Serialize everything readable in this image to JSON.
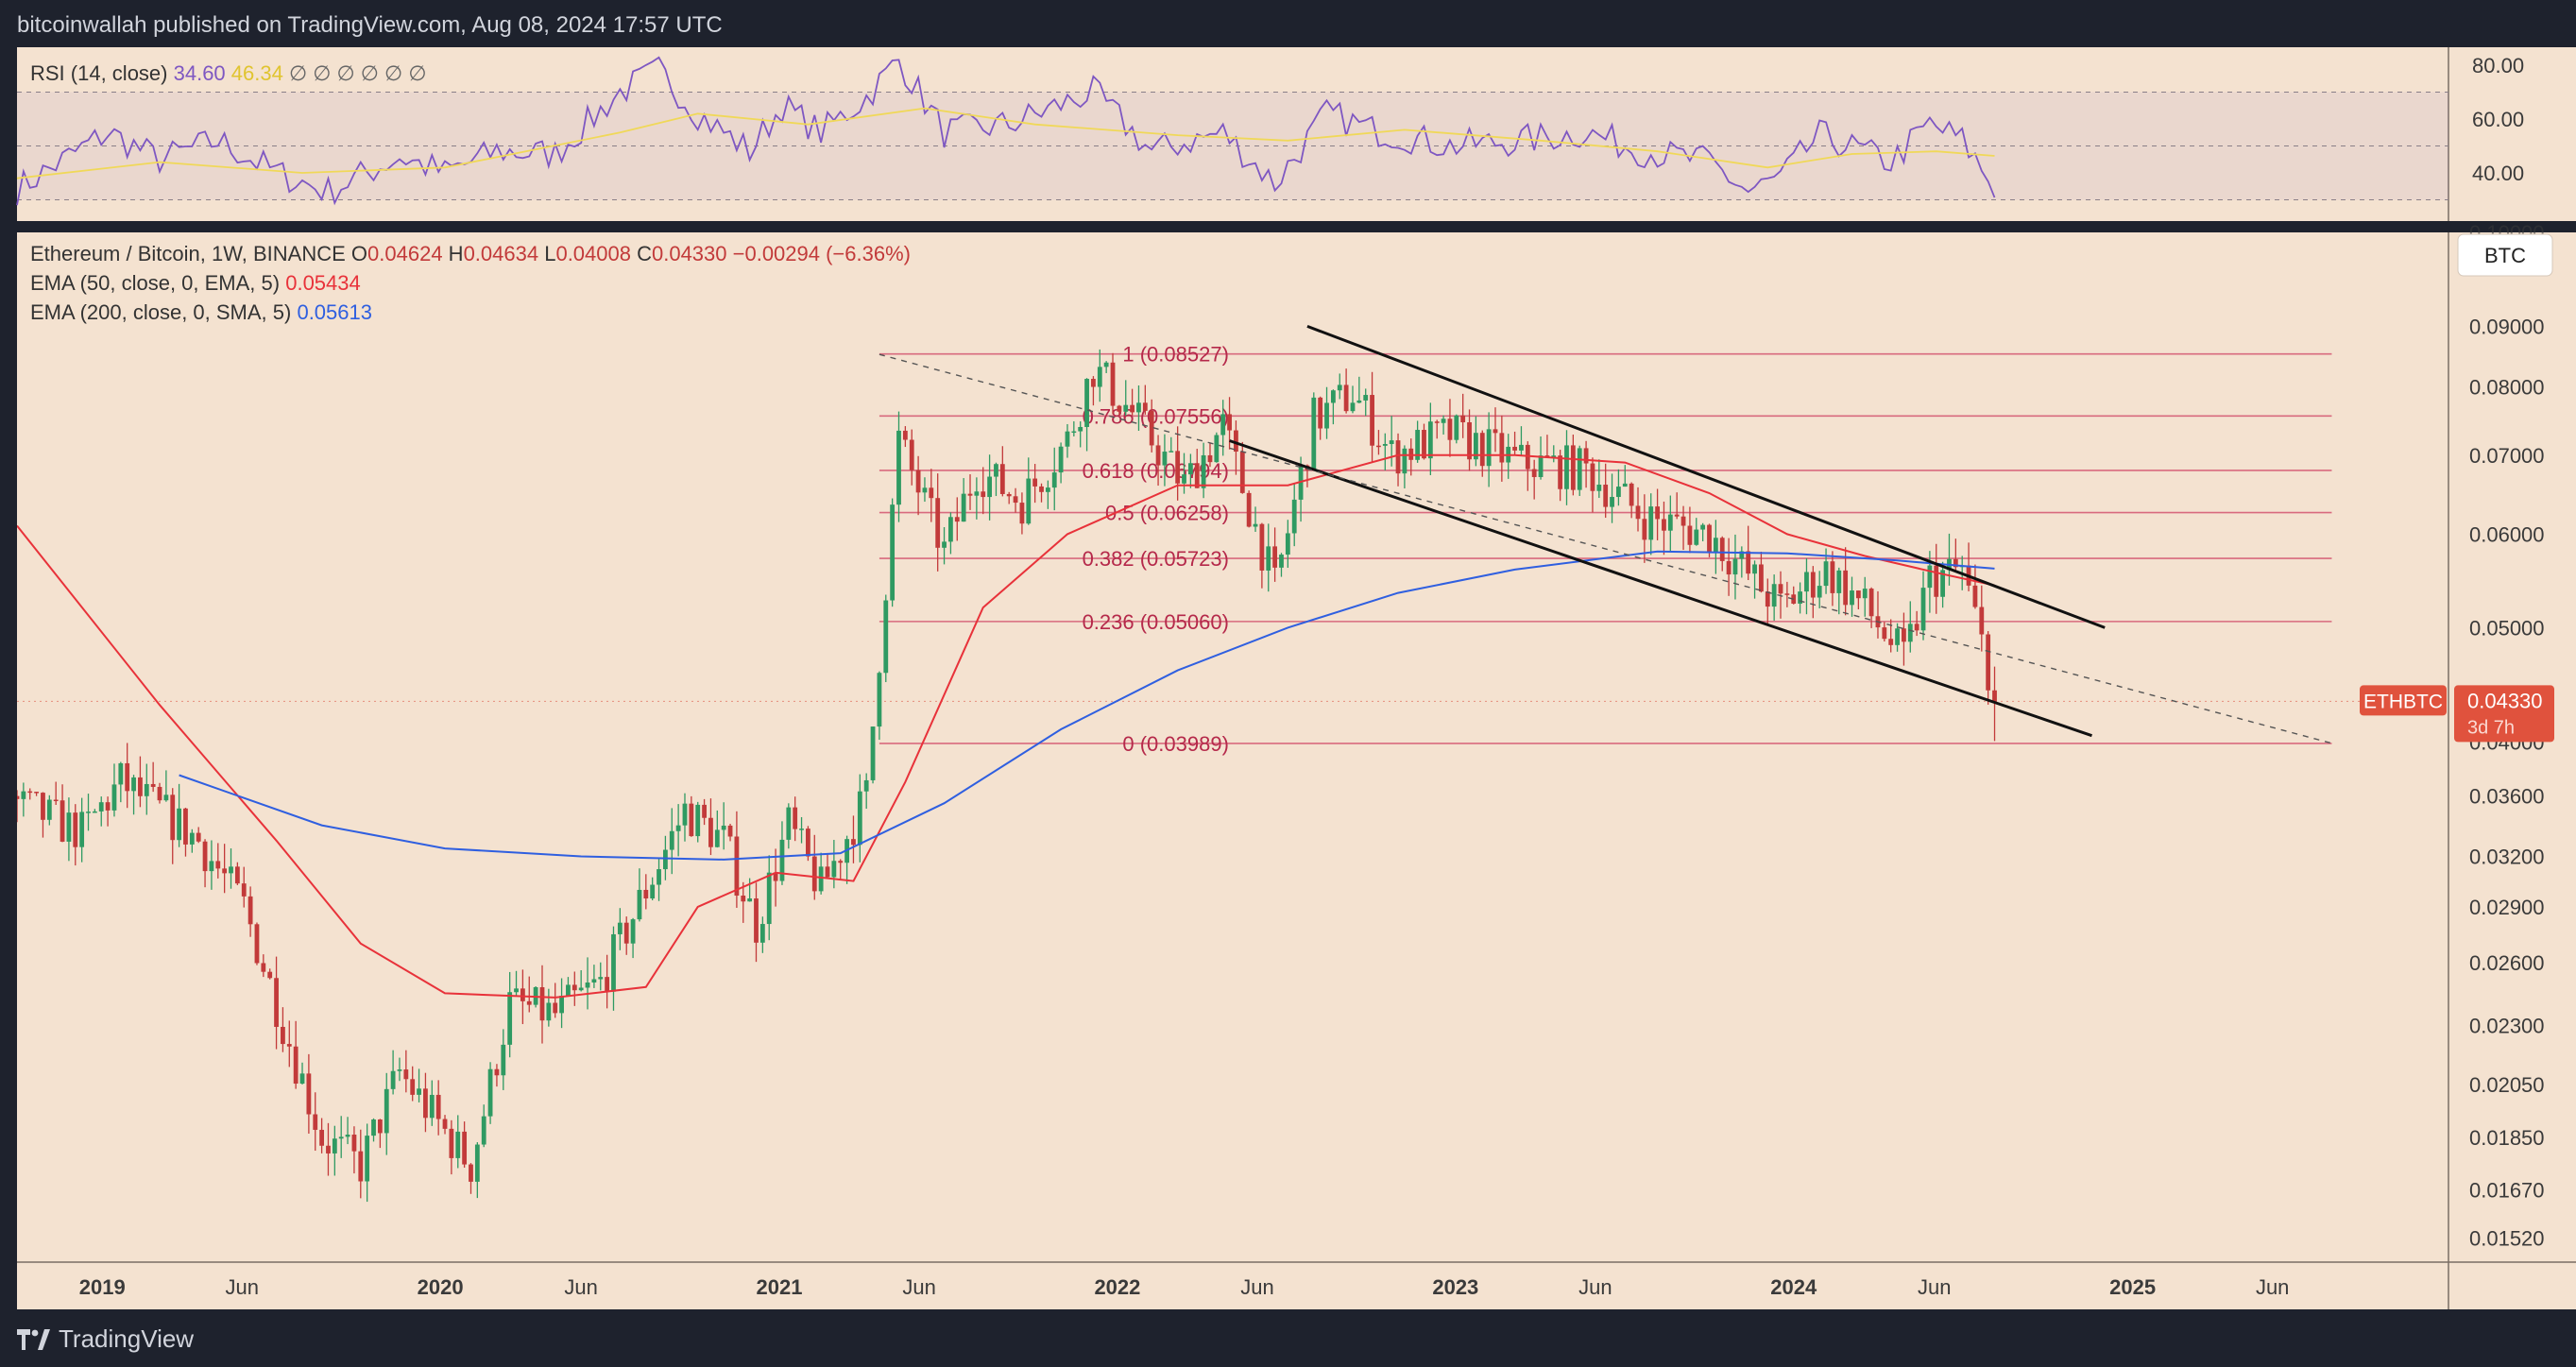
{
  "header": {
    "publisher": "bitcoinwallah published on TradingView.com, Aug 08, 2024 17:57 UTC"
  },
  "footer": {
    "brand": "TradingView",
    "logo_icon": "tradingview-logo-icon"
  },
  "colors": {
    "panel_bg": "#f4e2d0",
    "frame": "#1e222d",
    "up": "#2f9a62",
    "down": "#c23a3a",
    "ema50": "#e8323a",
    "ema200": "#2f5fe0",
    "rsi": "#7e57c2",
    "rsi_ma": "#f0d858",
    "fib": "#d86a7e",
    "fib_text": "#b5294a",
    "trend": "#111111"
  },
  "rsi_panel": {
    "title": "RSI (14, close)",
    "value": "34.60",
    "ma_value": "46.34",
    "extras": "∅ ∅ ∅ ∅ ∅ ∅",
    "axis_ticks": [
      "80.00",
      "60.00",
      "40.00"
    ]
  },
  "legend": {
    "symbol": "Ethereum / Bitcoin, 1W, BINANCE",
    "ohlc": [
      {
        "label": "O",
        "value": "0.04624"
      },
      {
        "label": "H",
        "value": "0.04634"
      },
      {
        "label": "L",
        "value": "0.04008"
      },
      {
        "label": "C",
        "value": "0.04330"
      }
    ],
    "change": "−0.00294 (−6.36%)",
    "ema50_label": "EMA (50, close, 0, EMA, 5)",
    "ema50_value": "0.05434",
    "ema200_label": "EMA (200, close, 0, SMA, 5)",
    "ema200_value": "0.05613"
  },
  "currency_button": "BTC",
  "price_tag": {
    "symbol": "ETHBTC",
    "price": "0.04330",
    "countdown": "3d 7h"
  },
  "chart_data": {
    "type": "candlestick",
    "title": "Ethereum / Bitcoin, 1W, BINANCE",
    "y_scale": "log",
    "ylim": [
      0.0146,
      0.1
    ],
    "y_ticks": [
      "0.09000",
      "0.08000",
      "0.07000",
      "0.06000",
      "0.05000",
      "0.04000",
      "0.03600",
      "0.03200",
      "0.02900",
      "0.02600",
      "0.02300",
      "0.02050",
      "0.01850",
      "0.01670",
      "0.01520"
    ],
    "x_ticks": [
      "2019",
      "Jun",
      "2020",
      "Jun",
      "2021",
      "Jun",
      "2022",
      "Jun",
      "2023",
      "Jun",
      "2024",
      "Jun",
      "2025",
      "Jun"
    ],
    "fibonacci": [
      {
        "label": "1 (0.08527)",
        "value": 0.08527
      },
      {
        "label": "0.786 (0.07556)",
        "value": 0.07556
      },
      {
        "label": "0.618 (0.06794)",
        "value": 0.06794
      },
      {
        "label": "0.5 (0.06258)",
        "value": 0.06258
      },
      {
        "label": "0.382 (0.05723)",
        "value": 0.05723
      },
      {
        "label": "0.236 (0.05060)",
        "value": 0.0506
      },
      {
        "label": "0 (0.03989)",
        "value": 0.03989
      }
    ],
    "anchors": [
      [
        "2018-10-01",
        0.0355
      ],
      [
        "2018-12-10",
        0.0335
      ],
      [
        "2019-01-21",
        0.037
      ],
      [
        "2019-03-04",
        0.035
      ],
      [
        "2019-04-15",
        0.033
      ],
      [
        "2019-06-03",
        0.029
      ],
      [
        "2019-07-08",
        0.024
      ],
      [
        "2019-08-26",
        0.0185
      ],
      [
        "2019-10-07",
        0.0175
      ],
      [
        "2019-11-18",
        0.021
      ],
      [
        "2019-12-30",
        0.019
      ],
      [
        "2020-02-03",
        0.0175
      ],
      [
        "2020-03-16",
        0.024
      ],
      [
        "2020-05-04",
        0.0235
      ],
      [
        "2020-06-22",
        0.025
      ],
      [
        "2020-08-10",
        0.03
      ],
      [
        "2020-09-21",
        0.035
      ],
      [
        "2020-11-02",
        0.033
      ],
      [
        "2020-12-07",
        0.028
      ],
      [
        "2021-01-11",
        0.034
      ],
      [
        "2021-02-15",
        0.03
      ],
      [
        "2021-04-05",
        0.036
      ],
      [
        "2021-05-10",
        0.072
      ],
      [
        "2021-06-28",
        0.058
      ],
      [
        "2021-08-02",
        0.068
      ],
      [
        "2021-09-20",
        0.064
      ],
      [
        "2021-11-08",
        0.072
      ],
      [
        "2021-12-06",
        0.083
      ],
      [
        "2022-01-17",
        0.076
      ],
      [
        "2022-03-14",
        0.066
      ],
      [
        "2022-04-25",
        0.074
      ],
      [
        "2022-06-20",
        0.054
      ],
      [
        "2022-08-01",
        0.075
      ],
      [
        "2022-09-12",
        0.079
      ],
      [
        "2022-10-24",
        0.07
      ],
      [
        "2022-12-26",
        0.073
      ],
      [
        "2023-03-13",
        0.069
      ],
      [
        "2023-05-22",
        0.068
      ],
      [
        "2023-07-24",
        0.062
      ],
      [
        "2023-10-02",
        0.06
      ],
      [
        "2023-12-18",
        0.052
      ],
      [
        "2024-02-05",
        0.056
      ],
      [
        "2024-03-18",
        0.052
      ],
      [
        "2024-04-29",
        0.047
      ],
      [
        "2024-05-27",
        0.055
      ],
      [
        "2024-07-01",
        0.056
      ],
      [
        "2024-07-29",
        0.0462
      ],
      [
        "2024-08-05",
        0.0433
      ]
    ],
    "ema50": [
      [
        "2018-10-01",
        0.061
      ],
      [
        "2019-03-04",
        0.043
      ],
      [
        "2019-07-08",
        0.033
      ],
      [
        "2019-10-07",
        0.027
      ],
      [
        "2020-01-06",
        0.0245
      ],
      [
        "2020-05-04",
        0.0243
      ],
      [
        "2020-08-10",
        0.0248
      ],
      [
        "2020-10-05",
        0.029
      ],
      [
        "2020-12-28",
        0.031
      ],
      [
        "2021-03-22",
        0.0305
      ],
      [
        "2021-05-17",
        0.037
      ],
      [
        "2021-08-09",
        0.052
      ],
      [
        "2021-11-08",
        0.06
      ],
      [
        "2022-03-07",
        0.066
      ],
      [
        "2022-07-04",
        0.066
      ],
      [
        "2022-10-31",
        0.07
      ],
      [
        "2023-03-06",
        0.07
      ],
      [
        "2023-07-03",
        0.069
      ],
      [
        "2023-10-02",
        0.065
      ],
      [
        "2023-12-25",
        0.06
      ],
      [
        "2024-03-18",
        0.0575
      ],
      [
        "2024-06-10",
        0.0555
      ],
      [
        "2024-08-05",
        0.0543
      ]
    ],
    "ema200": [
      [
        "2019-03-25",
        0.0375
      ],
      [
        "2019-08-26",
        0.034
      ],
      [
        "2020-01-06",
        0.0325
      ],
      [
        "2020-06-01",
        0.032
      ],
      [
        "2020-11-02",
        0.0318
      ],
      [
        "2021-03-08",
        0.0322
      ],
      [
        "2021-06-28",
        0.0355
      ],
      [
        "2021-11-01",
        0.041
      ],
      [
        "2022-03-07",
        0.046
      ],
      [
        "2022-07-04",
        0.05
      ],
      [
        "2022-10-31",
        0.0535
      ],
      [
        "2023-03-06",
        0.056
      ],
      [
        "2023-08-07",
        0.058
      ],
      [
        "2023-12-25",
        0.0578
      ],
      [
        "2024-04-22",
        0.057
      ],
      [
        "2024-08-05",
        0.0561
      ]
    ],
    "trendlines": [
      {
        "name": "channel-upper",
        "from": [
          "2022-07-25",
          0.09
        ],
        "to": [
          "2024-12-02",
          0.05
        ],
        "style": "solid"
      },
      {
        "name": "channel-lower",
        "from": [
          "2022-05-02",
          0.072
        ],
        "to": [
          "2024-11-18",
          0.0405
        ],
        "style": "solid"
      },
      {
        "name": "mid-dashed",
        "from": [
          "2021-04-19",
          0.0852
        ],
        "to": [
          "2025-08-04",
          0.0399
        ],
        "style": "dashed"
      }
    ],
    "rsi": [
      [
        "2018-10-01",
        34
      ],
      [
        "2019-01-07",
        55
      ],
      [
        "2019-03-04",
        45
      ],
      [
        "2019-05-06",
        52
      ],
      [
        "2019-07-08",
        40
      ],
      [
        "2019-09-02",
        33
      ],
      [
        "2019-11-18",
        46
      ],
      [
        "2020-01-06",
        40
      ],
      [
        "2020-03-02",
        48
      ],
      [
        "2020-05-04",
        47
      ],
      [
        "2020-07-13",
        70
      ],
      [
        "2020-08-24",
        78
      ],
      [
        "2020-10-05",
        62
      ],
      [
        "2020-11-30",
        48
      ],
      [
        "2021-01-04",
        65
      ],
      [
        "2021-02-15",
        55
      ],
      [
        "2021-04-05",
        68
      ],
      [
        "2021-05-10",
        82
      ],
      [
        "2021-06-28",
        55
      ],
      [
        "2021-09-06",
        58
      ],
      [
        "2021-12-06",
        70
      ],
      [
        "2022-02-07",
        48
      ],
      [
        "2022-04-25",
        55
      ],
      [
        "2022-06-20",
        36
      ],
      [
        "2022-08-15",
        62
      ],
      [
        "2022-10-03",
        56
      ],
      [
        "2022-12-26",
        50
      ],
      [
        "2023-03-13",
        52
      ],
      [
        "2023-05-22",
        55
      ],
      [
        "2023-07-24",
        48
      ],
      [
        "2023-10-02",
        44
      ],
      [
        "2023-11-13",
        33
      ],
      [
        "2023-12-18",
        38
      ],
      [
        "2024-01-29",
        54
      ],
      [
        "2024-04-15",
        44
      ],
      [
        "2024-05-27",
        58
      ],
      [
        "2024-07-01",
        52
      ],
      [
        "2024-08-05",
        34.6
      ]
    ],
    "rsi_ma": [
      [
        "2018-10-01",
        38
      ],
      [
        "2019-03-04",
        44
      ],
      [
        "2019-08-05",
        40
      ],
      [
        "2020-01-06",
        42
      ],
      [
        "2020-07-13",
        55
      ],
      [
        "2020-10-05",
        62
      ],
      [
        "2021-02-01",
        58
      ],
      [
        "2021-06-07",
        64
      ],
      [
        "2021-10-04",
        58
      ],
      [
        "2022-03-07",
        54
      ],
      [
        "2022-07-04",
        52
      ],
      [
        "2022-11-07",
        56
      ],
      [
        "2023-04-03",
        52
      ],
      [
        "2023-08-07",
        48
      ],
      [
        "2023-12-04",
        42
      ],
      [
        "2024-03-04",
        47
      ],
      [
        "2024-06-03",
        48
      ],
      [
        "2024-08-05",
        46.3
      ]
    ]
  }
}
